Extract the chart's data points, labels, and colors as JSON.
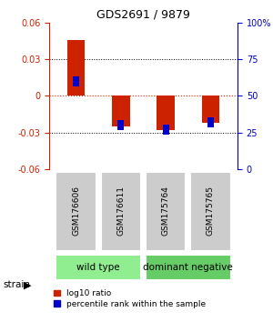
{
  "title": "GDS2691 / 9879",
  "samples": [
    "GSM176606",
    "GSM176611",
    "GSM175764",
    "GSM175765"
  ],
  "log10_ratio": [
    0.046,
    -0.025,
    -0.028,
    -0.022
  ],
  "percentile_rank": [
    0.6,
    0.3,
    0.27,
    0.32
  ],
  "groups": [
    {
      "label": "wild type",
      "samples": [
        0,
        1
      ],
      "color": "#90EE90"
    },
    {
      "label": "dominant negative",
      "samples": [
        2,
        3
      ],
      "color": "#66CC66"
    }
  ],
  "group_label": "strain",
  "ylim_left": [
    -0.06,
    0.06
  ],
  "ylim_right": [
    0,
    1.0
  ],
  "yticks_left": [
    -0.06,
    -0.03,
    0,
    0.03,
    0.06
  ],
  "ytick_labels_left": [
    "-0.06",
    "-0.03",
    "0",
    "0.03",
    "0.06"
  ],
  "yticks_right": [
    0.0,
    0.25,
    0.5,
    0.75,
    1.0
  ],
  "ytick_labels_right": [
    "0",
    "25",
    "50",
    "75",
    "100%"
  ],
  "bar_color_red": "#CC2200",
  "bar_color_blue": "#0000CC",
  "bar_width": 0.4,
  "blue_bar_width": 0.14,
  "bg_color": "#FFFFFF",
  "plot_bg": "#FFFFFF",
  "grid_color": "#000000",
  "zero_line_color": "#CC2200",
  "sample_box_color": "#CCCCCC",
  "title_color": "#000000",
  "left_axis_color": "#CC2200",
  "right_axis_color": "#0000CC"
}
